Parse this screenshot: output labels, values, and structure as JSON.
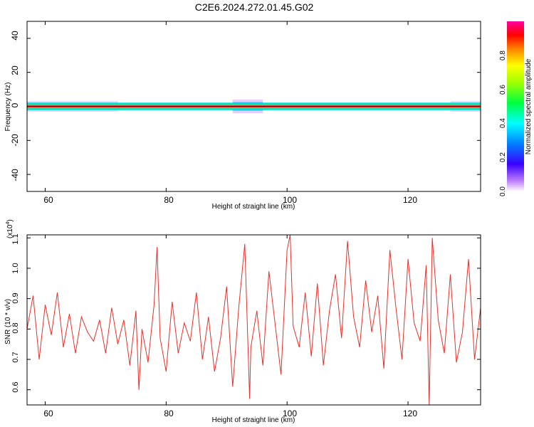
{
  "title": "C2E6.2024.272.01.45.G02",
  "colors": {
    "signal": "#e8302a",
    "hot": "#e8332a",
    "axis": "#000000"
  },
  "chart_data": [
    {
      "type": "heatmap",
      "xlabel": "Height of straight line (km)",
      "ylabel": "Frequency (Hz)",
      "xlim": [
        57,
        132
      ],
      "ylim": [
        -50,
        50
      ],
      "x_ticks": [
        "60",
        "80",
        "100",
        "120"
      ],
      "y_ticks": [
        "40",
        "20",
        "0",
        "-20",
        "-40"
      ],
      "colorbar": {
        "label": "Normalized spectral amplitude",
        "range": [
          0,
          1
        ],
        "ticks": [
          "0.0",
          "0.2",
          "0.4",
          "0.6",
          "0.8"
        ]
      },
      "band_center_hz": 0,
      "band_halfwidth_hz": 1,
      "noise_segments": [
        {
          "x": [
            57,
            72
          ],
          "halfwidth_hz": 3
        },
        {
          "x": [
            77,
            81
          ],
          "halfwidth_hz": 2
        },
        {
          "x": [
            85,
            89
          ],
          "halfwidth_hz": 2
        },
        {
          "x": [
            91,
            96
          ],
          "halfwidth_hz": 4
        },
        {
          "x": [
            112,
            114
          ],
          "halfwidth_hz": 2
        },
        {
          "x": [
            117,
            119
          ],
          "halfwidth_hz": 2
        },
        {
          "x": [
            127,
            132
          ],
          "halfwidth_hz": 3
        }
      ]
    },
    {
      "type": "line",
      "xlabel": "Height of straight line (km)",
      "ylabel": "SNR (10 * v/v)",
      "y_multiplier": "(x10",
      "y_multiplier_exp": "4",
      "y_multiplier_close": ")",
      "xlim": [
        57,
        132
      ],
      "ylim": [
        0.55,
        1.11
      ],
      "x_ticks": [
        "60",
        "80",
        "100",
        "120"
      ],
      "y_ticks": [
        "1.1",
        "1.0",
        "0.9",
        "0.8",
        "0.7",
        "0.6"
      ],
      "series": [
        {
          "x": [
            57,
            58,
            59,
            60,
            61,
            62,
            63,
            64,
            65,
            66,
            67,
            68,
            69,
            70,
            71,
            72,
            73,
            74,
            75,
            75.5,
            76,
            77,
            78,
            78.5,
            79,
            80,
            81,
            82,
            83,
            84,
            85,
            86,
            87,
            88,
            89,
            90,
            91,
            92,
            93,
            93.8,
            94,
            95,
            96,
            97,
            98,
            99,
            100,
            100.5,
            101,
            102,
            103,
            104,
            105,
            106,
            107,
            108,
            109,
            110,
            111,
            112,
            113,
            114,
            115,
            116,
            117,
            118,
            119,
            120,
            121,
            122,
            123,
            123.5,
            124,
            125,
            126,
            127,
            128,
            129,
            130,
            131,
            132
          ],
          "y": [
            0.8,
            0.91,
            0.7,
            0.88,
            0.78,
            0.92,
            0.74,
            0.85,
            0.72,
            0.84,
            0.79,
            0.76,
            0.83,
            0.72,
            0.87,
            0.75,
            0.83,
            0.68,
            0.86,
            0.6,
            0.8,
            0.69,
            0.88,
            1.07,
            0.77,
            0.66,
            0.89,
            0.72,
            0.82,
            0.76,
            0.92,
            0.7,
            0.84,
            0.66,
            0.77,
            0.94,
            0.61,
            0.87,
            1.08,
            0.57,
            0.74,
            0.86,
            0.68,
            0.99,
            0.82,
            0.65,
            1.06,
            1.11,
            0.81,
            0.74,
            0.92,
            0.71,
            0.95,
            0.68,
            0.86,
            0.98,
            0.77,
            1.09,
            0.84,
            0.74,
            0.96,
            0.79,
            0.91,
            0.67,
            1.06,
            0.87,
            0.7,
            1.03,
            0.82,
            0.76,
            1.01,
            0.55,
            1.1,
            0.83,
            0.72,
            0.98,
            0.69,
            0.79,
            1.03,
            0.7,
            0.87
          ]
        }
      ]
    }
  ]
}
